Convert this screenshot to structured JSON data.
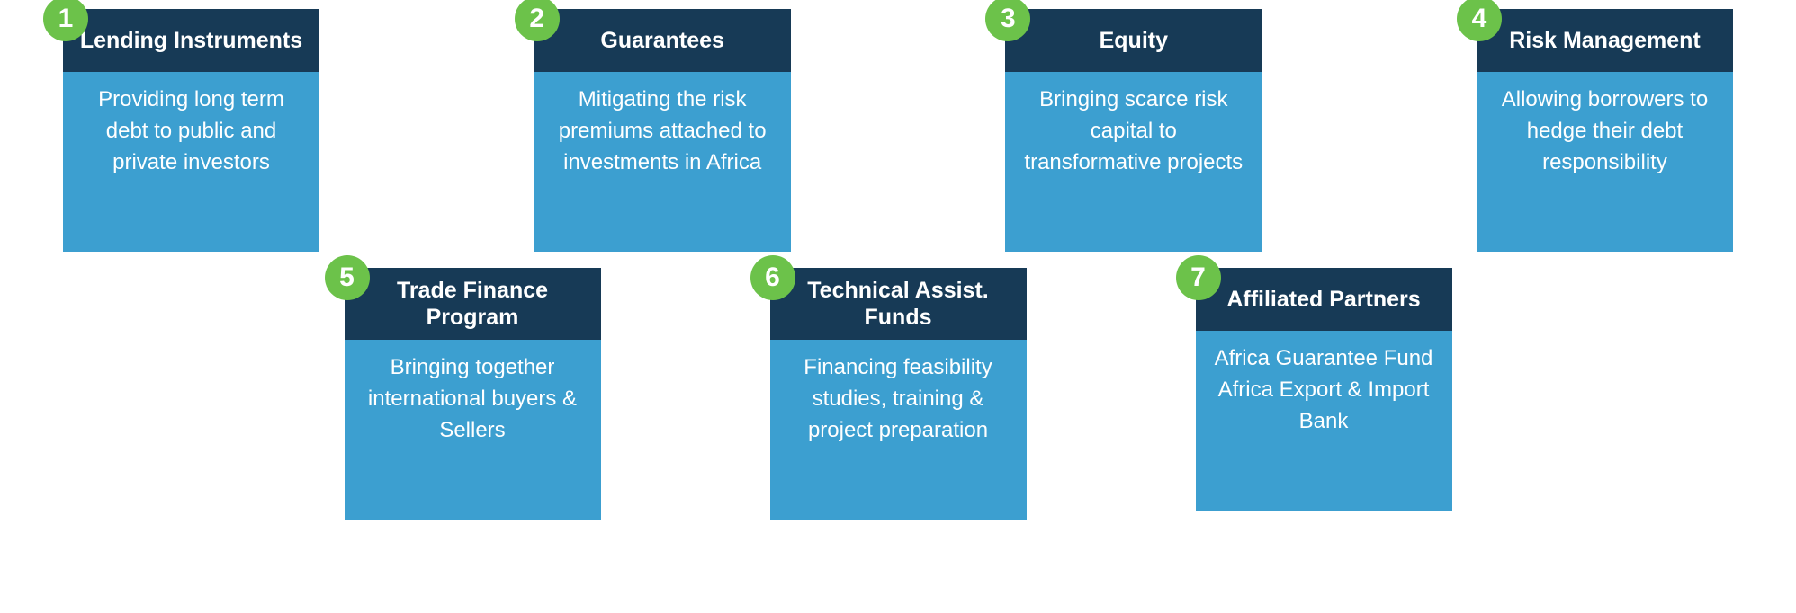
{
  "colors": {
    "badge_bg": "#6cc24a",
    "header_bg": "#173a56",
    "body_bg": "#3c9fd0",
    "text": "#ffffff"
  },
  "cards": [
    {
      "num": "1",
      "title": "Lending Instruments",
      "desc": "Providing long term debt to public and private investors"
    },
    {
      "num": "2",
      "title": "Guarantees",
      "desc": "Mitigating the risk premiums attached to investments in Africa"
    },
    {
      "num": "3",
      "title": "Equity",
      "desc": "Bringing scarce risk capital to transformative projects"
    },
    {
      "num": "4",
      "title": "Risk Management",
      "desc": "Allowing borrowers to hedge their debt responsibility"
    },
    {
      "num": "5",
      "title": "Trade Finance Program",
      "desc": "Bringing together international buyers & Sellers"
    },
    {
      "num": "6",
      "title": "Technical Assist. Funds",
      "desc": "Financing feasibility studies, training & project preparation"
    },
    {
      "num": "7",
      "title": "Affiliated Partners",
      "desc": "Africa Guarantee Fund\nAfrica Export & Import Bank"
    }
  ]
}
